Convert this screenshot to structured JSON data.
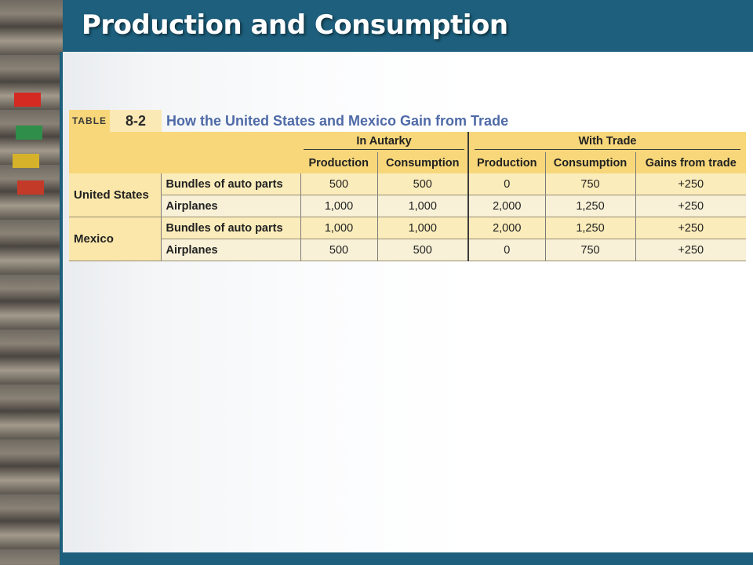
{
  "slide": {
    "title": "Production and Consumption"
  },
  "table": {
    "label": "TABLE",
    "number": "8-2",
    "title": "How the United States and Mexico Gain from Trade",
    "group_headers": [
      "In Autarky",
      "With Trade"
    ],
    "column_headers": [
      "Production",
      "Consumption",
      "Production",
      "Consumption",
      "Gains from trade"
    ],
    "rows": [
      {
        "country": "United States",
        "good": "Bundles of auto parts",
        "values": [
          "500",
          "500",
          "0",
          "750",
          "+250"
        ]
      },
      {
        "country": "",
        "good": "Airplanes",
        "values": [
          "1,000",
          "1,000",
          "2,000",
          "1,250",
          "+250"
        ]
      },
      {
        "country": "Mexico",
        "good": "Bundles of auto parts",
        "values": [
          "1,000",
          "1,000",
          "2,000",
          "1,250",
          "+250"
        ]
      },
      {
        "country": "",
        "good": "Airplanes",
        "values": [
          "500",
          "500",
          "0",
          "750",
          "+250"
        ]
      }
    ]
  },
  "colors": {
    "title_bar": "#1d5f7c",
    "header_fill": "#f7d77a",
    "table_title": "#4e6aa7"
  }
}
